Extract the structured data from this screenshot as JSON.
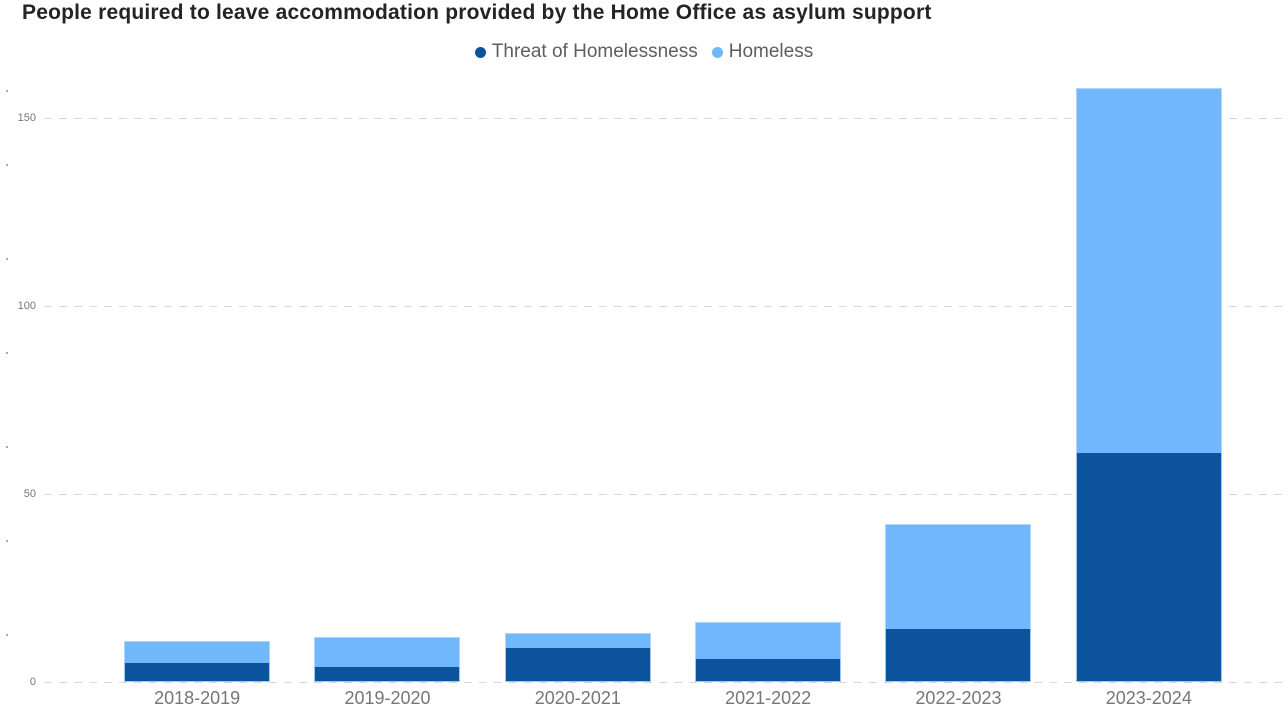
{
  "title": "People required to leave accommodation provided by the Home Office as asylum support",
  "legend": {
    "items": [
      {
        "label": "Threat of Homelessness",
        "color": "#0B549D"
      },
      {
        "label": "Homeless",
        "color": "#70B8FB"
      }
    ]
  },
  "chart_data": {
    "type": "bar",
    "stacked": true,
    "title": "People required to leave accommodation provided by the Home Office as asylum support",
    "categories": [
      "2018-2019",
      "2019-2020",
      "2020-2021",
      "2021-2022",
      "2022-2023",
      "2023-2024"
    ],
    "series": [
      {
        "name": "Threat of Homelessness",
        "color": "#0B549D",
        "values": [
          5,
          4,
          9,
          6,
          14,
          61
        ]
      },
      {
        "name": "Homeless",
        "color": "#70B8FB",
        "values": [
          6,
          8,
          4,
          10,
          28,
          97
        ]
      }
    ],
    "totals": [
      11,
      12,
      13,
      16,
      42,
      158
    ],
    "xlabel": "",
    "ylabel": "",
    "ylim": [
      0,
      160
    ],
    "yticks": [
      0,
      50,
      100,
      150
    ],
    "minor_yticks": [
      12.5,
      37.5,
      62.5,
      87.5,
      112.5,
      137.5,
      157
    ],
    "grid": "horizontal-dashed",
    "legend_position": "top-center"
  },
  "colors": {
    "threat": "#0B549D",
    "homeless": "#70B8FB",
    "gridline": "#D8D8D8",
    "axis_text": "#757575",
    "category_text": "#767676",
    "legend_text": "#5F5E5C",
    "title_text": "#252423",
    "background": "#FFFFFF"
  }
}
